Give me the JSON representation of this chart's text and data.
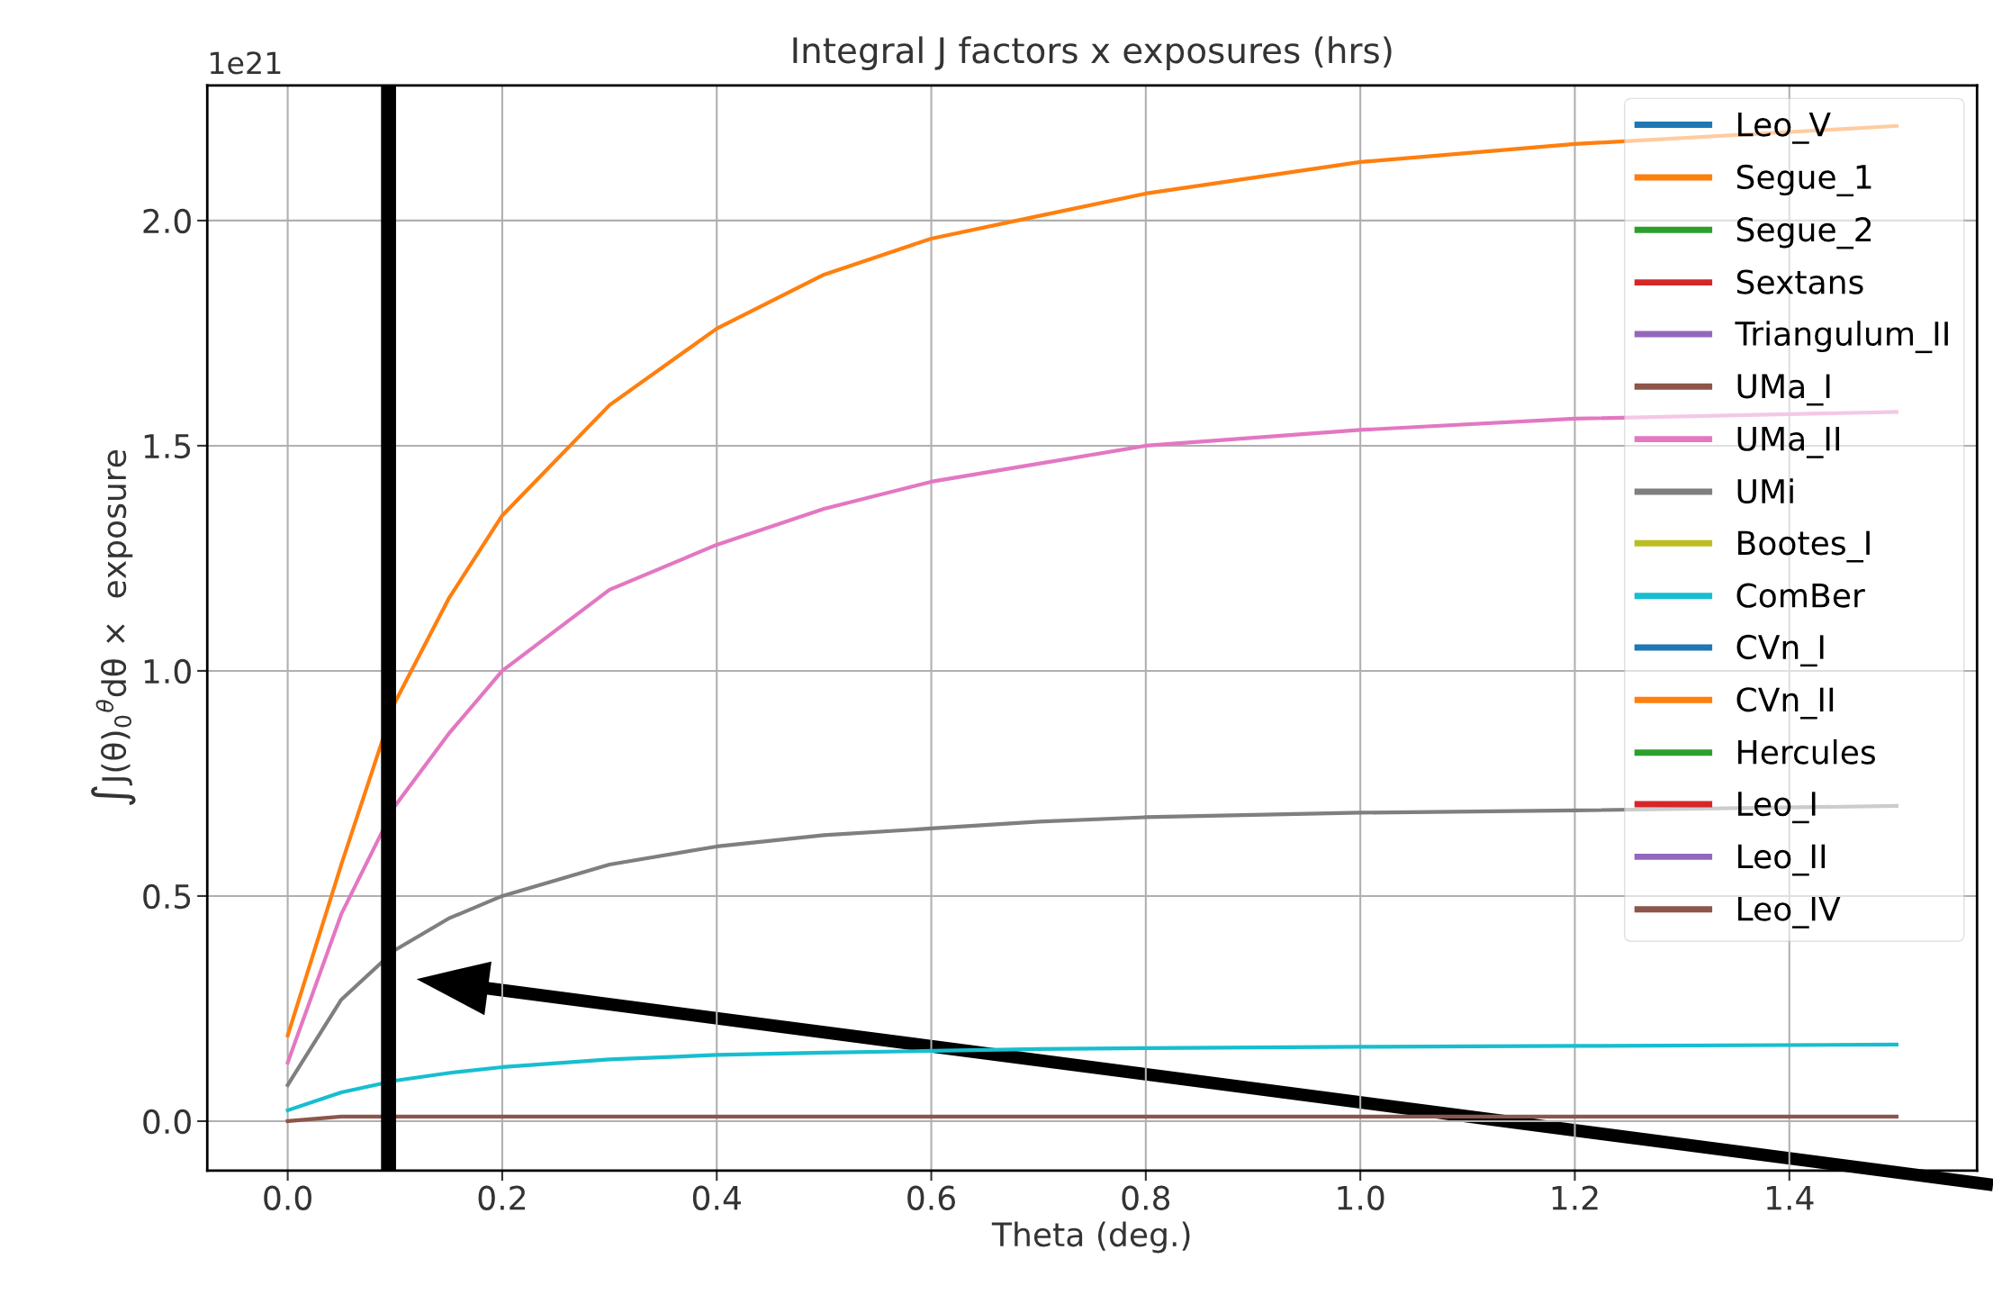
{
  "chart_data": {
    "type": "line",
    "title": "Integral J factors x exposures (hrs)",
    "xlabel": "Theta (deg.)",
    "ylabel": "∫J(θ)$_{0}$$^{θ}$dθ ×  exposure",
    "annotations": [
      "1e21"
    ],
    "x": [
      0,
      0.05,
      0.1,
      0.15,
      0.2,
      0.3,
      0.4,
      0.5,
      0.6,
      0.7,
      0.8,
      1.0,
      1.2,
      1.5
    ],
    "series": [
      {
        "name": "Leo_V",
        "color": "#1f77b4",
        "values": [
          null,
          null,
          null,
          null,
          null,
          null,
          null,
          null,
          null,
          null,
          null,
          null,
          null,
          null
        ]
      },
      {
        "name": "Segue_1",
        "color": "#ff7f0e",
        "values": [
          0.19,
          0.57,
          0.93,
          1.16,
          1.345,
          1.59,
          1.76,
          1.88,
          1.96,
          2.01,
          2.06,
          2.13,
          2.17,
          2.21
        ]
      },
      {
        "name": "Segue_2",
        "color": "#2ca02c",
        "values": [
          null,
          null,
          null,
          null,
          null,
          null,
          null,
          null,
          null,
          null,
          null,
          null,
          null,
          null
        ]
      },
      {
        "name": "Sextans",
        "color": "#d62728",
        "values": [
          null,
          null,
          null,
          null,
          null,
          null,
          null,
          null,
          null,
          null,
          null,
          null,
          null,
          null
        ]
      },
      {
        "name": "Triangulum_II",
        "color": "#9467bd",
        "values": [
          null,
          null,
          null,
          null,
          null,
          null,
          null,
          null,
          null,
          null,
          null,
          null,
          null,
          null
        ]
      },
      {
        "name": "UMa_I",
        "color": "#8c564b",
        "values": [
          null,
          null,
          null,
          null,
          null,
          null,
          null,
          null,
          null,
          null,
          null,
          null,
          null,
          null
        ]
      },
      {
        "name": "UMa_II",
        "color": "#e377c2",
        "values": [
          0.13,
          0.46,
          0.7,
          0.86,
          1.0,
          1.18,
          1.28,
          1.36,
          1.42,
          1.46,
          1.5,
          1.535,
          1.56,
          1.575
        ]
      },
      {
        "name": "UMi",
        "color": "#7f7f7f",
        "values": [
          0.08,
          0.27,
          0.38,
          0.45,
          0.5,
          0.57,
          0.61,
          0.635,
          0.65,
          0.665,
          0.675,
          0.685,
          0.69,
          0.7
        ]
      },
      {
        "name": "Bootes_I",
        "color": "#bcbd22",
        "values": [
          null,
          null,
          null,
          null,
          null,
          null,
          null,
          null,
          null,
          null,
          null,
          null,
          null,
          null
        ]
      },
      {
        "name": "ComBer",
        "color": "#17becf",
        "values": [
          0.024,
          0.064,
          0.09,
          0.107,
          0.12,
          0.137,
          0.147,
          0.152,
          0.156,
          0.16,
          0.162,
          0.165,
          0.167,
          0.17
        ]
      },
      {
        "name": "CVn_I",
        "color": "#1f77b4",
        "values": [
          null,
          null,
          null,
          null,
          null,
          null,
          null,
          null,
          null,
          null,
          null,
          null,
          null,
          null
        ]
      },
      {
        "name": "CVn_II",
        "color": "#ff7f0e",
        "values": [
          null,
          null,
          null,
          null,
          null,
          null,
          null,
          null,
          null,
          null,
          null,
          null,
          null,
          null
        ]
      },
      {
        "name": "Hercules",
        "color": "#2ca02c",
        "values": [
          null,
          null,
          null,
          null,
          null,
          null,
          null,
          null,
          null,
          null,
          null,
          null,
          null,
          null
        ]
      },
      {
        "name": "Leo_I",
        "color": "#d62728",
        "values": [
          null,
          null,
          null,
          null,
          null,
          null,
          null,
          null,
          null,
          null,
          null,
          null,
          null,
          null
        ]
      },
      {
        "name": "Leo_II",
        "color": "#9467bd",
        "values": [
          null,
          null,
          null,
          null,
          null,
          null,
          null,
          null,
          null,
          null,
          null,
          null,
          null,
          null
        ]
      },
      {
        "name": "Leo_IV",
        "color": "#8c564b",
        "values": [
          0,
          0.01,
          0.01,
          0.01,
          0.01,
          0.01,
          0.01,
          0.01,
          0.01,
          0.01,
          0.01,
          0.01,
          0.01,
          0.01
        ]
      }
    ],
    "xlim": [
      -0.075,
      1.575
    ],
    "xticks": [
      {
        "value": 0,
        "label": "0.0"
      },
      0.2,
      0.4,
      0.6,
      0.8,
      {
        "value": 1,
        "label": "1.0"
      },
      1.2,
      1.4
    ],
    "ylim": [
      -0.11,
      2.3
    ],
    "yticks": [
      {
        "value": 0,
        "label": "0.0"
      },
      0.5,
      {
        "value": 1,
        "label": "1.0"
      },
      1.5,
      {
        "value": 2,
        "label": "2.0"
      }
    ],
    "ref_lines": [
      {
        "axis": "x",
        "value": 0.094,
        "label": null,
        "color": "#000000"
      }
    ],
    "grid": true,
    "legend": "top right"
  }
}
